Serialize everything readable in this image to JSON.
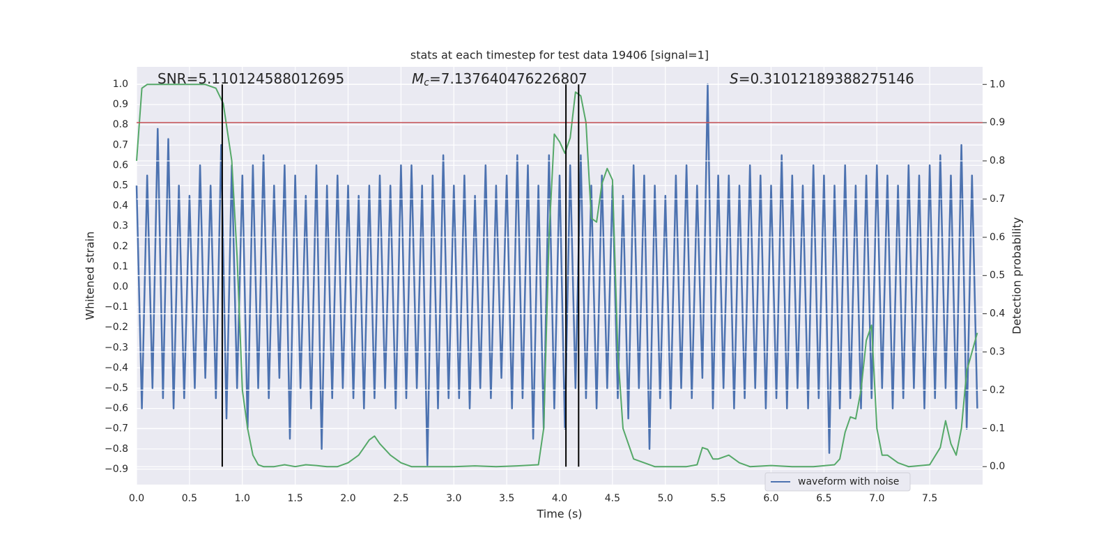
{
  "chart_data": {
    "type": "line",
    "title": "stats at each timestep for test data 19406 [signal=1]",
    "xlabel": "Time (s)",
    "ylabel": "Whitened strain",
    "y2label": "Detection probability",
    "annotations": [
      {
        "symbol": "SNR",
        "text": "=5.110124588012695"
      },
      {
        "symbol": "M",
        "subscript": "c",
        "text": "=7.137640476226807"
      },
      {
        "symbol": "S",
        "text": "=0.31012189388275146"
      }
    ],
    "xlim": [
      0,
      8
    ],
    "ylim": [
      -0.976,
      1.086
    ],
    "y2lim": [
      -0.047,
      1.046
    ],
    "grid": true,
    "legend": "lower right",
    "xticks": [
      {
        "value": 0,
        "label": "0.0"
      },
      {
        "value": 0.5,
        "label": "0.5"
      },
      {
        "value": 1,
        "label": "1.0"
      },
      {
        "value": 1.5,
        "label": "1.5"
      },
      {
        "value": 2,
        "label": "2.0"
      },
      {
        "value": 2.5,
        "label": "2.5"
      },
      {
        "value": 3,
        "label": "3.0"
      },
      {
        "value": 3.5,
        "label": "3.5"
      },
      {
        "value": 4,
        "label": "4.0"
      },
      {
        "value": 4.5,
        "label": "4.5"
      },
      {
        "value": 5,
        "label": "5.0"
      },
      {
        "value": 5.5,
        "label": "5.5"
      },
      {
        "value": 6,
        "label": "6.0"
      },
      {
        "value": 6.5,
        "label": "6.5"
      },
      {
        "value": 7,
        "label": "7.0"
      },
      {
        "value": 7.5,
        "label": "7.5"
      }
    ],
    "yticks": [
      {
        "value": -0.9,
        "label": "−0.9"
      },
      {
        "value": -0.8,
        "label": "−0.8"
      },
      {
        "value": -0.7,
        "label": "−0.7"
      },
      {
        "value": -0.6,
        "label": "−0.6"
      },
      {
        "value": -0.5,
        "label": "−0.5"
      },
      {
        "value": -0.4,
        "label": "−0.4"
      },
      {
        "value": -0.3,
        "label": "−0.3"
      },
      {
        "value": -0.2,
        "label": "−0.2"
      },
      {
        "value": -0.1,
        "label": "−0.1"
      },
      {
        "value": 0,
        "label": "0.0"
      },
      {
        "value": 0.1,
        "label": "0.1"
      },
      {
        "value": 0.2,
        "label": "0.2"
      },
      {
        "value": 0.3,
        "label": "0.3"
      },
      {
        "value": 0.4,
        "label": "0.4"
      },
      {
        "value": 0.5,
        "label": "0.5"
      },
      {
        "value": 0.6,
        "label": "0.6"
      },
      {
        "value": 0.7,
        "label": "0.7"
      },
      {
        "value": 0.8,
        "label": "0.8"
      },
      {
        "value": 0.9,
        "label": "0.9"
      },
      {
        "value": 1,
        "label": "1.0"
      }
    ],
    "y2ticks": [
      {
        "value": 0,
        "label": "0.0"
      },
      {
        "value": 0.1,
        "label": "0.1"
      },
      {
        "value": 0.2,
        "label": "0.2"
      },
      {
        "value": 0.3,
        "label": "0.3"
      },
      {
        "value": 0.4,
        "label": "0.4"
      },
      {
        "value": 0.5,
        "label": "0.5"
      },
      {
        "value": 0.6,
        "label": "0.6"
      },
      {
        "value": 0.7,
        "label": "0.7"
      },
      {
        "value": 0.8,
        "label": "0.8"
      },
      {
        "value": 0.9,
        "label": "0.9"
      },
      {
        "value": 1,
        "label": "1.0"
      }
    ],
    "hline": {
      "y2": 0.9,
      "color": "#c44e52"
    },
    "vlines": {
      "x": [
        0.81,
        4.06,
        4.18
      ],
      "y2": [
        0,
        1
      ],
      "color": "#000000"
    },
    "series": [
      {
        "name": "waveform with noise",
        "color": "#4c72b0",
        "legend": true,
        "x": [
          0,
          0.05,
          0.1,
          0.15,
          0.2,
          0.25,
          0.3,
          0.35,
          0.4,
          0.45,
          0.5,
          0.55,
          0.6,
          0.65,
          0.7,
          0.75,
          0.8,
          0.85,
          0.9,
          0.95,
          1,
          1.05,
          1.1,
          1.15,
          1.2,
          1.25,
          1.3,
          1.35,
          1.4,
          1.45,
          1.5,
          1.55,
          1.6,
          1.65,
          1.7,
          1.75,
          1.8,
          1.85,
          1.9,
          1.95,
          2,
          2.05,
          2.1,
          2.15,
          2.2,
          2.25,
          2.3,
          2.35,
          2.4,
          2.45,
          2.5,
          2.55,
          2.6,
          2.65,
          2.7,
          2.75,
          2.8,
          2.85,
          2.9,
          2.95,
          3,
          3.05,
          3.1,
          3.15,
          3.2,
          3.25,
          3.3,
          3.35,
          3.4,
          3.45,
          3.5,
          3.55,
          3.6,
          3.65,
          3.7,
          3.75,
          3.8,
          3.85,
          3.9,
          3.95,
          4,
          4.05,
          4.1,
          4.15,
          4.2,
          4.25,
          4.3,
          4.35,
          4.4,
          4.45,
          4.5,
          4.55,
          4.6,
          4.65,
          4.7,
          4.75,
          4.8,
          4.85,
          4.9,
          4.95,
          5,
          5.05,
          5.1,
          5.15,
          5.2,
          5.25,
          5.3,
          5.35,
          5.4,
          5.45,
          5.5,
          5.55,
          5.6,
          5.65,
          5.7,
          5.75,
          5.8,
          5.85,
          5.9,
          5.95,
          6,
          6.05,
          6.1,
          6.15,
          6.2,
          6.25,
          6.3,
          6.35,
          6.4,
          6.45,
          6.5,
          6.55,
          6.6,
          6.65,
          6.7,
          6.75,
          6.8,
          6.85,
          6.9,
          6.95,
          7,
          7.05,
          7.1,
          7.15,
          7.2,
          7.25,
          7.3,
          7.35,
          7.4,
          7.45,
          7.5,
          7.55,
          7.6,
          7.65,
          7.7,
          7.75,
          7.8,
          7.85,
          7.9,
          7.95
        ],
        "values": [
          0.5,
          -0.6,
          0.55,
          -0.5,
          0.78,
          -0.55,
          0.73,
          -0.6,
          0.5,
          -0.55,
          0.45,
          -0.5,
          0.6,
          -0.45,
          0.5,
          -0.55,
          0.7,
          -0.65,
          0.6,
          -0.5,
          0.55,
          -0.7,
          0.6,
          -0.5,
          0.65,
          -0.55,
          0.5,
          -0.45,
          0.6,
          -0.75,
          0.55,
          -0.5,
          0.45,
          -0.6,
          0.6,
          -0.8,
          0.5,
          -0.55,
          0.55,
          -0.5,
          0.5,
          -0.55,
          0.45,
          -0.6,
          0.5,
          -0.55,
          0.55,
          -0.5,
          0.5,
          -0.6,
          0.6,
          -0.55,
          0.6,
          -0.5,
          0.5,
          -0.88,
          0.55,
          -0.6,
          0.65,
          -0.55,
          0.5,
          -0.55,
          0.55,
          -0.6,
          0.45,
          -0.5,
          0.6,
          -0.55,
          0.5,
          -0.45,
          0.55,
          -0.6,
          0.65,
          -0.55,
          0.6,
          -0.75,
          0.5,
          -0.7,
          0.65,
          -0.6,
          0.55,
          -0.7,
          0.6,
          -0.5,
          0.65,
          -0.55,
          0.5,
          -0.6,
          0.55,
          -0.5,
          0.5,
          -0.55,
          0.45,
          -0.65,
          0.6,
          -0.5,
          0.55,
          -0.8,
          0.5,
          -0.55,
          0.45,
          -0.6,
          0.55,
          -0.5,
          0.6,
          -0.55,
          0.5,
          -0.45,
          1.0,
          -0.6,
          0.55,
          -0.5,
          0.55,
          -0.6,
          0.5,
          -0.55,
          0.6,
          -0.5,
          0.55,
          -0.6,
          0.5,
          -0.55,
          0.65,
          -0.6,
          0.55,
          -0.5,
          0.5,
          -0.6,
          0.6,
          -0.55,
          0.55,
          -0.82,
          0.5,
          -0.6,
          0.6,
          -0.55,
          0.5,
          -0.6,
          0.55,
          -0.55,
          0.6,
          -0.5,
          0.55,
          -0.6,
          0.5,
          -0.55,
          0.6,
          -0.5,
          0.55,
          -0.6,
          0.6,
          -0.55,
          0.65,
          -0.5,
          0.55,
          -0.6,
          0.7,
          -0.7,
          0.55,
          -0.6
        ]
      },
      {
        "color": "#55a868",
        "axis": "y2",
        "x": [
          0,
          0.05,
          0.1,
          0.2,
          0.3,
          0.4,
          0.5,
          0.65,
          0.75,
          0.82,
          0.9,
          0.95,
          1,
          1.05,
          1.1,
          1.15,
          1.2,
          1.3,
          1.4,
          1.5,
          1.6,
          1.7,
          1.8,
          1.9,
          2,
          2.1,
          2.15,
          2.2,
          2.25,
          2.3,
          2.4,
          2.5,
          2.6,
          2.8,
          3,
          3.2,
          3.4,
          3.6,
          3.8,
          3.85,
          3.9,
          3.95,
          4,
          4.05,
          4.1,
          4.15,
          4.2,
          4.25,
          4.3,
          4.35,
          4.4,
          4.45,
          4.5,
          4.55,
          4.6,
          4.7,
          4.8,
          4.9,
          5,
          5.2,
          5.3,
          5.35,
          5.4,
          5.45,
          5.5,
          5.6,
          5.7,
          5.8,
          6,
          6.2,
          6.4,
          6.6,
          6.65,
          6.7,
          6.75,
          6.8,
          6.85,
          6.9,
          6.95,
          7,
          7.05,
          7.1,
          7.2,
          7.3,
          7.5,
          7.6,
          7.65,
          7.7,
          7.75,
          7.8,
          7.85,
          7.95
        ],
        "values": [
          0.8,
          0.99,
          1.0,
          1.0,
          1.0,
          1.0,
          1.0,
          1.0,
          0.99,
          0.95,
          0.8,
          0.55,
          0.2,
          0.1,
          0.03,
          0.005,
          0.0,
          0.0,
          0.005,
          0.0,
          0.005,
          0.003,
          0.0,
          0.0,
          0.01,
          0.03,
          0.05,
          0.07,
          0.08,
          0.06,
          0.03,
          0.01,
          0.0,
          0.0,
          0.0,
          0.002,
          0.0,
          0.002,
          0.005,
          0.1,
          0.6,
          0.87,
          0.85,
          0.82,
          0.86,
          0.98,
          0.97,
          0.9,
          0.65,
          0.64,
          0.74,
          0.78,
          0.75,
          0.3,
          0.1,
          0.02,
          0.01,
          0.0,
          0.0,
          0.0,
          0.005,
          0.05,
          0.045,
          0.02,
          0.02,
          0.03,
          0.01,
          0.0,
          0.003,
          0.0,
          0.0,
          0.005,
          0.02,
          0.09,
          0.13,
          0.125,
          0.2,
          0.33,
          0.37,
          0.1,
          0.03,
          0.03,
          0.01,
          0.0,
          0.005,
          0.05,
          0.12,
          0.06,
          0.03,
          0.1,
          0.25,
          0.35
        ]
      }
    ]
  }
}
